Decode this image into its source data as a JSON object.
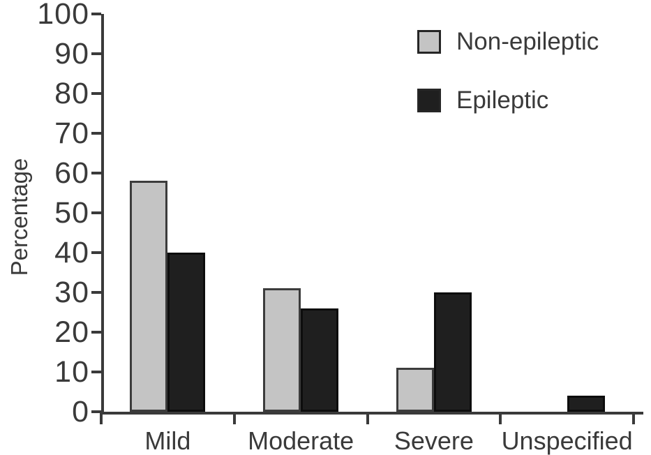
{
  "figure": {
    "background": "#ffffff",
    "text_color": "#3a3a3a",
    "axis_color": "#3a3a3a"
  },
  "chart_data": {
    "type": "bar",
    "title": "",
    "xlabel": "",
    "ylabel": "Percentage",
    "categories": [
      "Mild",
      "Moderate",
      "Severe",
      "Unspecified"
    ],
    "series": [
      {
        "name": "Non-epileptic",
        "fill": "#c4c4c4",
        "border": "#3c3c3c",
        "values": [
          58,
          31,
          11,
          0
        ]
      },
      {
        "name": "Epileptic",
        "fill": "#1f1f1f",
        "border": "#0d0d0d",
        "values": [
          40,
          26,
          30,
          4
        ]
      }
    ],
    "ylim": [
      0,
      100
    ],
    "yticks": [
      0,
      10,
      20,
      30,
      40,
      50,
      60,
      70,
      80,
      90,
      100
    ],
    "grid": false,
    "legend_position": "top-right"
  }
}
